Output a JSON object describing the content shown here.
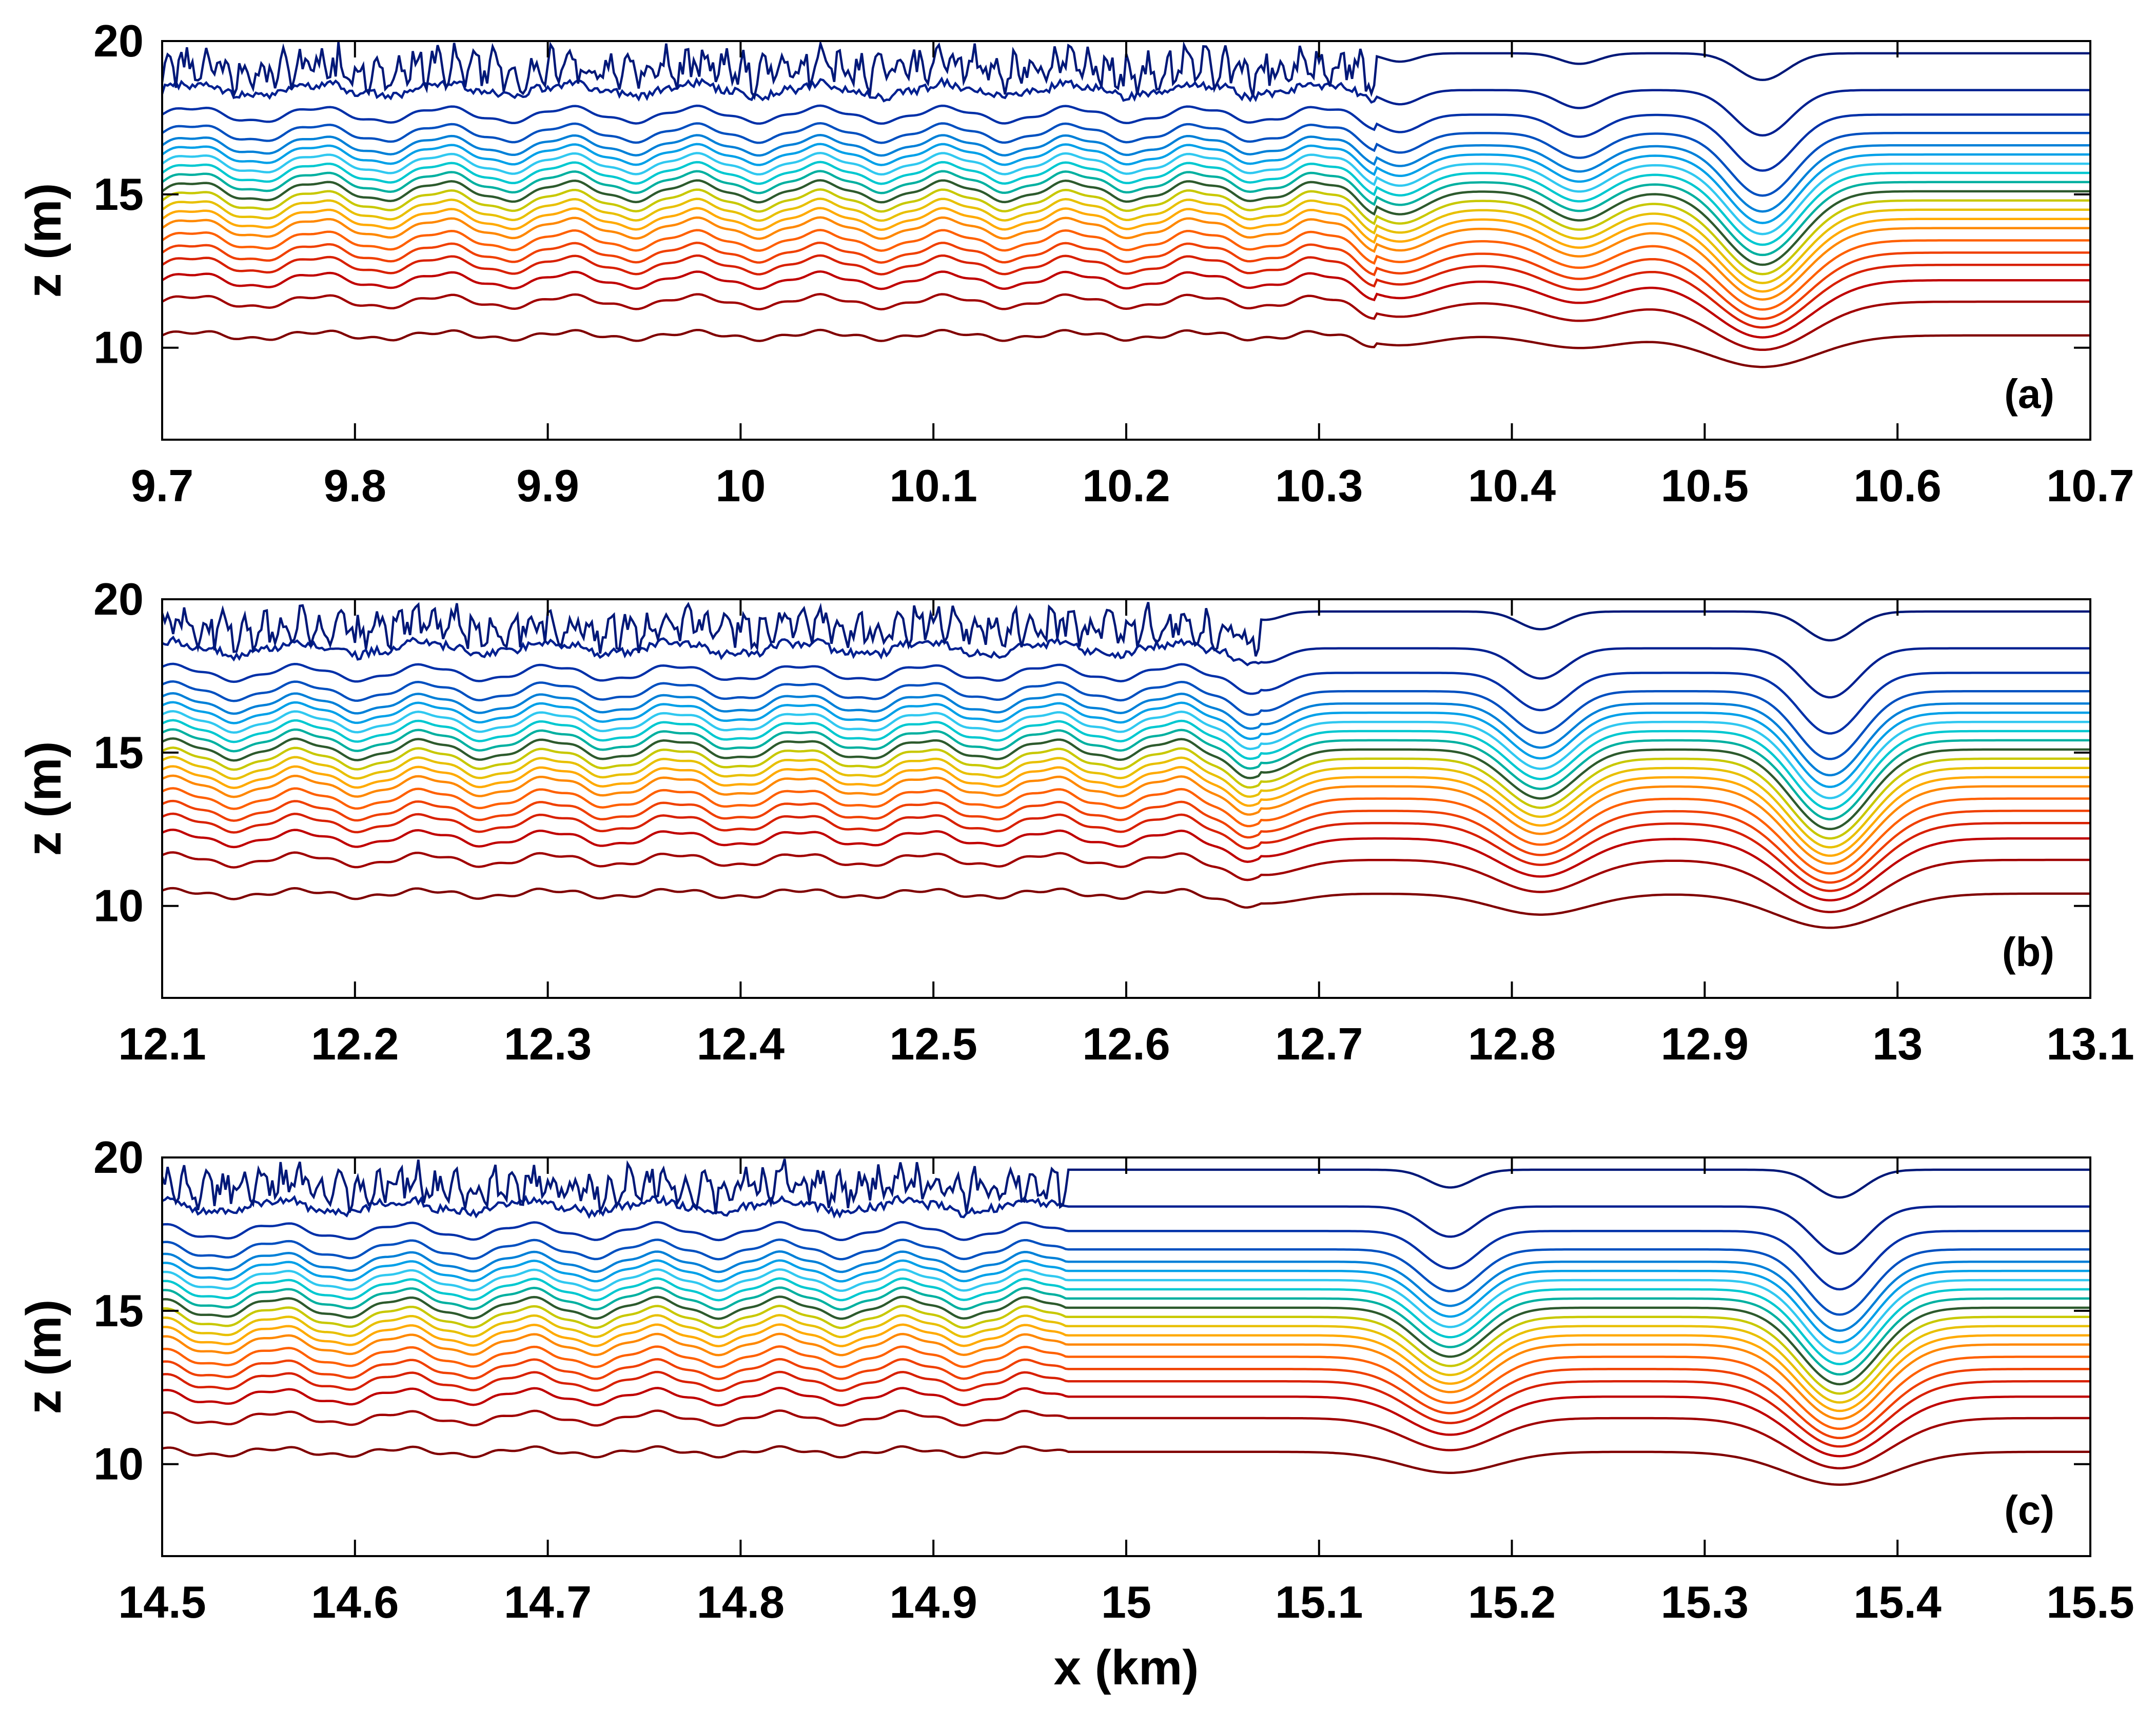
{
  "chart_data": [
    {
      "type": "line",
      "panel_label": "(a)",
      "ylabel": "z (m)",
      "xlabel": "",
      "xlim": [
        9.7,
        10.7
      ],
      "ylim": [
        7,
        20
      ],
      "xticks": [
        "9.7",
        "9.8",
        "9.9",
        "10",
        "10.1",
        "10.2",
        "10.3",
        "10.4",
        "10.5",
        "10.6",
        "10.7"
      ],
      "yticks": [
        "10",
        "15",
        "20"
      ],
      "troughs": [
        {
          "x": 10.342,
          "depth": 0.75,
          "width": 0.012
        },
        {
          "x": 10.435,
          "depth": 0.95,
          "width": 0.014
        },
        {
          "x": 10.53,
          "depth": 2.4,
          "width": 0.018
        }
      ],
      "turbulent_until": 10.33
    },
    {
      "type": "line",
      "panel_label": "(b)",
      "ylabel": "z (m)",
      "xlabel": "",
      "xlim": [
        12.1,
        13.1
      ],
      "ylim": [
        7,
        20
      ],
      "xticks": [
        "12.1",
        "12.2",
        "12.3",
        "12.4",
        "12.5",
        "12.6",
        "12.7",
        "12.8",
        "12.9",
        "13",
        "13.1"
      ],
      "yticks": [
        "10",
        "15",
        "20"
      ],
      "troughs": [
        {
          "x": 12.672,
          "depth": 0.75,
          "width": 0.012
        },
        {
          "x": 12.815,
          "depth": 1.6,
          "width": 0.016
        },
        {
          "x": 12.965,
          "depth": 2.6,
          "width": 0.018
        }
      ],
      "turbulent_until": 12.67
    },
    {
      "type": "line",
      "panel_label": "(c)",
      "ylabel": "z (m)",
      "xlabel": "x (km)",
      "xlim": [
        14.5,
        15.5
      ],
      "ylim": [
        7,
        20
      ],
      "xticks": [
        "14.5",
        "14.6",
        "14.7",
        "14.8",
        "14.9",
        "15",
        "15.1",
        "15.2",
        "15.3",
        "15.4",
        "15.5"
      ],
      "yticks": [
        "10",
        "15",
        "20"
      ],
      "troughs": [
        {
          "x": 15.168,
          "depth": 1.6,
          "width": 0.016
        },
        {
          "x": 15.37,
          "depth": 2.5,
          "width": 0.018
        }
      ],
      "turbulent_until": 14.97
    }
  ],
  "contour_levels": [
    10.4,
    11.5,
    12.2,
    12.7,
    13.1,
    13.5,
    13.9,
    14.2,
    14.5,
    14.8,
    15.1,
    15.4,
    15.7,
    16.0,
    16.3,
    16.6,
    17.0,
    17.6,
    18.4,
    19.6
  ],
  "contour_colors": [
    "#800000",
    "#a00000",
    "#c00000",
    "#d82000",
    "#f04000",
    "#ff6000",
    "#ff8800",
    "#ffaa00",
    "#e8c000",
    "#c8c800",
    "#2d5a2d",
    "#00b0a0",
    "#00c8d0",
    "#30c8f0",
    "#00a0e8",
    "#0080d8",
    "#0050c0",
    "#0030a8",
    "#002090",
    "#001878"
  ]
}
